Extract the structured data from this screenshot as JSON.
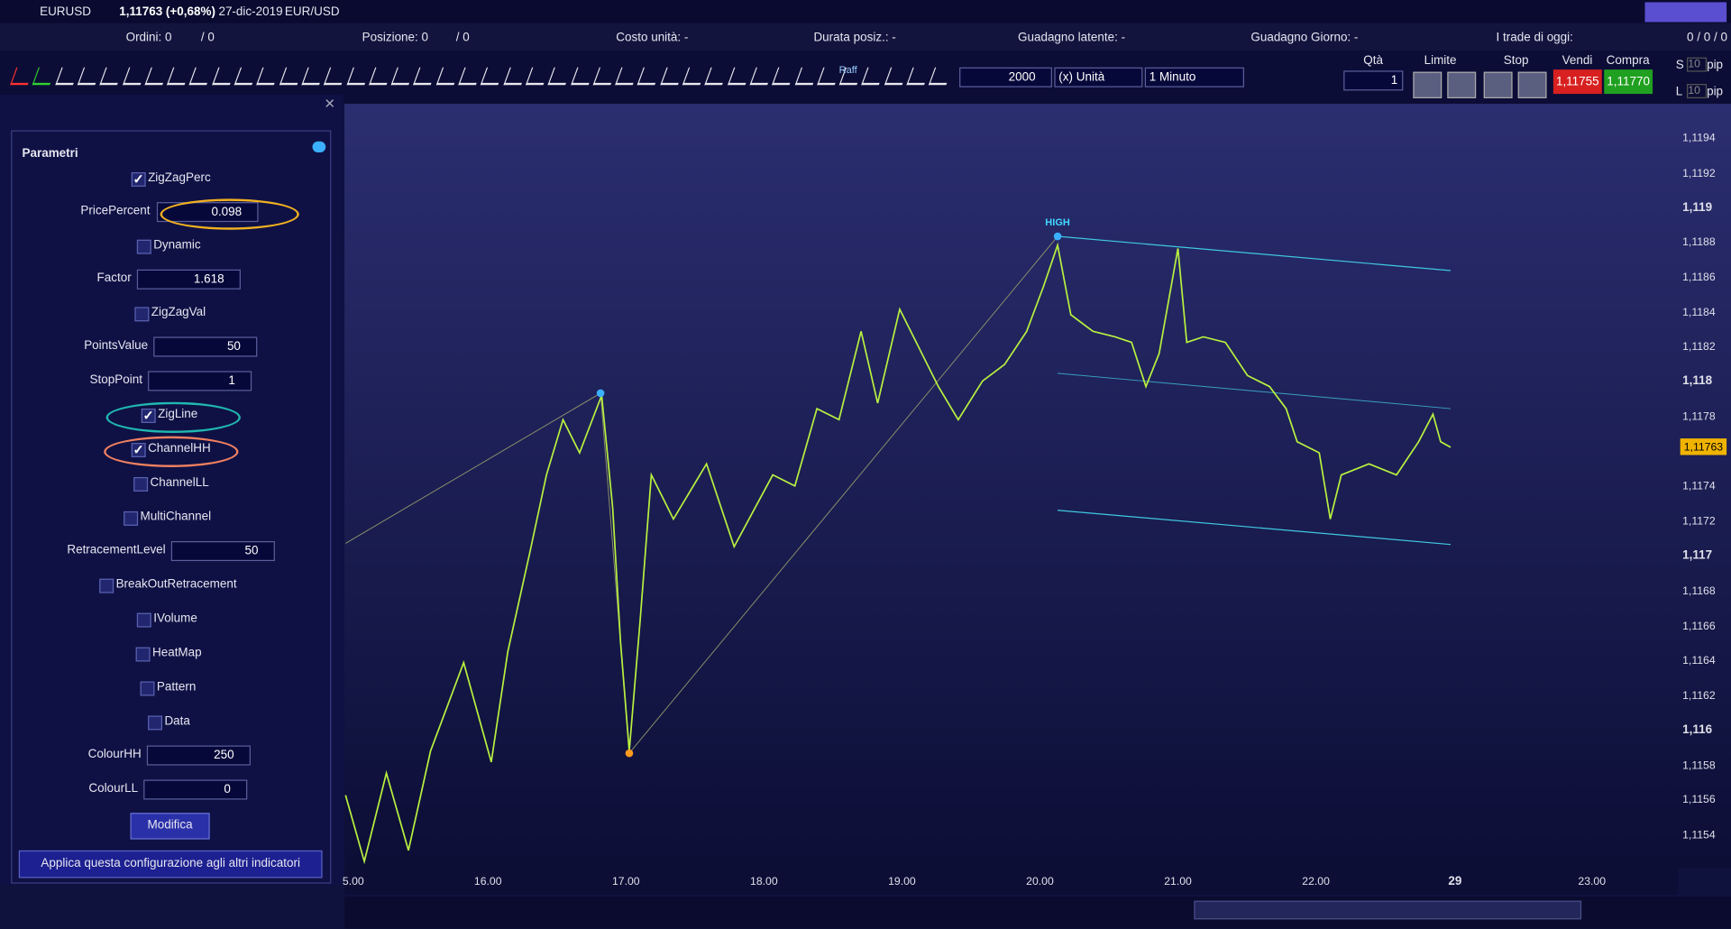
{
  "topbar": {
    "symbol": "EURUSD",
    "quote": "1,11763 (+0,68%)",
    "date": "27-dic-2019",
    "pair": "EUR/USD"
  },
  "infobar": {
    "items": [
      "Ordini: 0",
      "/ 0",
      "Posizione: 0",
      "/ 0",
      "Costo unità: -",
      "Durata posiz.: -",
      "Guadagno latente: -",
      "Guadagno Giorno: -",
      "I trade di oggi:",
      "0 / 0 / 0"
    ]
  },
  "toolbar": {
    "raff": "Raff",
    "quantity_input": "2000",
    "unit": "(x) Unità",
    "timeframe": "1 Minuto",
    "qty_label": "Qtà",
    "qty": "1",
    "limit": "Limite",
    "stop": "Stop",
    "sell_label": "Vendi",
    "buy_label": "Compra",
    "sell": "1,11755",
    "buy": "1,11770",
    "s": "S",
    "l": "L",
    "s_pip": "10",
    "l_pip": "10",
    "pip1": "pip",
    "pip2": "pip"
  },
  "panel": {
    "title": "Parametri",
    "params": [
      {
        "label": "ZigZagPerc",
        "type": "checkbox",
        "checked": true
      },
      {
        "label": "PricePercent",
        "type": "number",
        "value": "0.098"
      },
      {
        "label": "Dynamic",
        "type": "checkbox",
        "checked": false
      },
      {
        "label": "Factor",
        "type": "number",
        "value": "1.618"
      },
      {
        "label": "ZigZagVal",
        "type": "checkbox",
        "checked": false
      },
      {
        "label": "PointsValue",
        "type": "number",
        "value": "50"
      },
      {
        "label": "StopPoint",
        "type": "number",
        "value": "1"
      },
      {
        "label": "ZigLine",
        "type": "checkbox",
        "checked": true
      },
      {
        "label": "ChannelHH",
        "type": "checkbox",
        "checked": true
      },
      {
        "label": "ChannelLL",
        "type": "checkbox",
        "checked": false
      },
      {
        "label": "MultiChannel",
        "type": "checkbox",
        "checked": false
      },
      {
        "label": "RetracementLevel",
        "type": "number",
        "value": "50"
      },
      {
        "label": "BreakOutRetracement",
        "type": "checkbox",
        "checked": false
      },
      {
        "label": "IVolume",
        "type": "checkbox",
        "checked": false
      },
      {
        "label": "HeatMap",
        "type": "checkbox",
        "checked": false
      },
      {
        "label": "Pattern",
        "type": "checkbox",
        "checked": false
      },
      {
        "label": "Data",
        "type": "checkbox",
        "checked": false
      },
      {
        "label": "ColourHH",
        "type": "number",
        "value": "250"
      },
      {
        "label": "ColourLL",
        "type": "number",
        "value": "0"
      }
    ],
    "button": "Modifica",
    "apply": "Applica questa configurazione agli altri indicatori"
  },
  "chart": {
    "annotation": "HIGH",
    "current_price": "1,11763",
    "price_labels": [
      "1,1194",
      "1,1192",
      "1,119",
      "1,1188",
      "1,1186",
      "1,1184",
      "1,1182",
      "1,118",
      "1,1178",
      "1,1174",
      "1,1172",
      "1,117",
      "1,1168",
      "1,1166",
      "1,1164",
      "1,1162",
      "1,116",
      "1,1158",
      "1,1156",
      "1,1154"
    ],
    "time_labels": [
      "5.00",
      "16.00",
      "17.00",
      "18.00",
      "19.00",
      "20.00",
      "21.00",
      "22.00",
      "29",
      "23.00"
    ]
  }
}
